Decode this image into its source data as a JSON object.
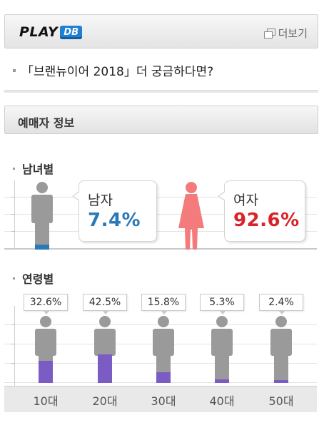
{
  "header": {
    "logo_play": "PLAY",
    "logo_db": "DB",
    "more_label": "더보기"
  },
  "promo": {
    "text": "「브랜뉴이어 2018」더 궁금하다면?"
  },
  "section": {
    "title": "예매자 정보"
  },
  "gender": {
    "title": "남녀별",
    "male": {
      "label": "남자",
      "percent": "7.4%",
      "value": 7.4,
      "color": "#2a7ab8"
    },
    "female": {
      "label": "여자",
      "percent": "92.6%",
      "value": 92.6,
      "color": "#d8232a"
    }
  },
  "age": {
    "title": "연령별",
    "groups": [
      {
        "label": "10대",
        "percent": "32.6%",
        "value": 32.6
      },
      {
        "label": "20대",
        "percent": "42.5%",
        "value": 42.5
      },
      {
        "label": "30대",
        "percent": "15.8%",
        "value": 15.8
      },
      {
        "label": "40대",
        "percent": "5.3%",
        "value": 5.3
      },
      {
        "label": "50대",
        "percent": "2.4%",
        "value": 2.4
      }
    ],
    "fill_color": "#7a5cc4",
    "figure_color": "#9a9a9a"
  },
  "chart_data": [
    {
      "type": "bar",
      "title": "남녀별",
      "categories": [
        "남자",
        "여자"
      ],
      "values": [
        7.4,
        92.6
      ]
    },
    {
      "type": "bar",
      "title": "연령별",
      "categories": [
        "10대",
        "20대",
        "30대",
        "40대",
        "50대"
      ],
      "values": [
        32.6,
        42.5,
        15.8,
        5.3,
        2.4
      ]
    }
  ]
}
